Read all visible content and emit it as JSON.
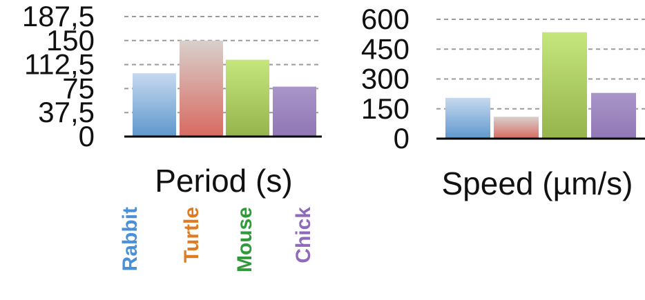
{
  "chart_data": [
    {
      "type": "bar",
      "xlabel": "Period (s)",
      "ylabel": "",
      "ylim": [
        0,
        187.5
      ],
      "yticks": [
        "0",
        "37,5",
        "75",
        "112,5",
        "150",
        "187,5"
      ],
      "grid": true,
      "categories": [
        "Rabbit",
        "Turtle",
        "Mouse",
        "Chick"
      ],
      "values": [
        99,
        150,
        120,
        78
      ]
    },
    {
      "type": "bar",
      "xlabel": "Speed (µm/s)",
      "ylabel": "",
      "ylim": [
        0,
        600
      ],
      "yticks": [
        "0",
        "150",
        "300",
        "450",
        "600"
      ],
      "grid": true,
      "categories": [
        "Rabbit",
        "Turtle",
        "Mouse",
        "Chick"
      ],
      "values": [
        205,
        110,
        535,
        230
      ]
    }
  ],
  "legend": {
    "placement": "bottom-left",
    "entries": [
      "Rabbit",
      "Turtle",
      "Mouse",
      "Chick"
    ]
  },
  "colors": {
    "Rabbit": {
      "top": "#c6d9ef",
      "bottom": "#5f97cd",
      "label": "#4a90d9"
    },
    "Turtle": {
      "top": "#d8d0cc",
      "bottom": "#d86a60",
      "label": "#e07b22"
    },
    "Mouse": {
      "top": "#c5e57d",
      "bottom": "#95b54c",
      "label": "#2f9a3a"
    },
    "Chick": {
      "top": "#a996c8",
      "bottom": "#9076b5",
      "label": "#8e6bb8"
    }
  }
}
